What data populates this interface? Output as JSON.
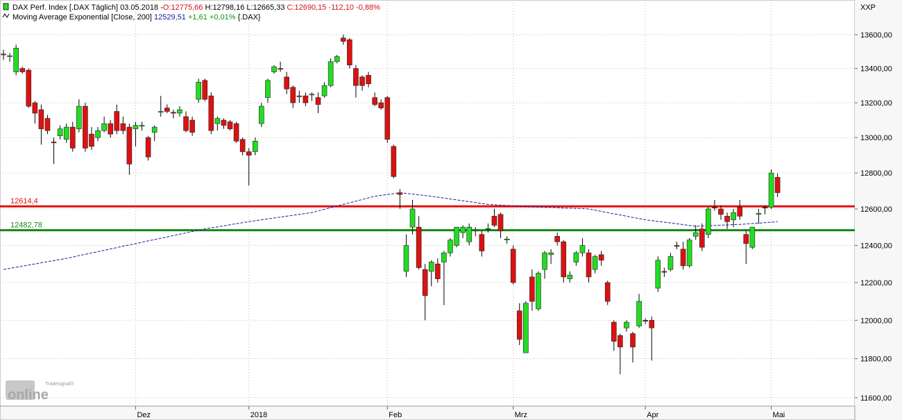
{
  "chart_data": {
    "type": "candlestick",
    "header": {
      "name": "DAX Perf. Index [.DAX  Täglich]",
      "date": "03.05.2018 -",
      "open": "O:12775,66",
      "high": "H:12798,16",
      "low": "L:12665,33",
      "close": "C:12690,15",
      "change": "-112,10",
      "change_pct": "-0,88%"
    },
    "ema": {
      "name": "Moving Average Exponential [Close, 200]",
      "last": "12529,51",
      "change": "+1,61 +0,01%",
      "symbol": "{.DAX}",
      "color": "#1a1aa0",
      "values": [
        12270,
        12276,
        12282,
        12288,
        12294,
        12300,
        12306,
        12312,
        12318,
        12324,
        12330,
        12337,
        12345,
        12352,
        12359,
        12366,
        12374,
        12381,
        12388,
        12396,
        12403,
        12410,
        12417,
        12425,
        12432,
        12439,
        12446,
        12454,
        12461,
        12468,
        12476,
        12483,
        12490,
        12496,
        12501,
        12507,
        12513,
        12519,
        12524,
        12530,
        12535,
        12540,
        12545,
        12550,
        12555,
        12560,
        12565,
        12570,
        12575,
        12580,
        12589,
        12598,
        12607,
        12616,
        12625,
        12634,
        12643,
        12652,
        12661,
        12670,
        12675,
        12680,
        12685,
        12690,
        12686,
        12682,
        12678,
        12674,
        12670,
        12665,
        12660,
        12655,
        12650,
        12645,
        12640,
        12635,
        12630,
        12625,
        12623,
        12621,
        12619,
        12617,
        12615,
        12612,
        12611,
        12610,
        12609,
        12608,
        12607,
        12605,
        12604,
        12603,
        12602,
        12600,
        12593,
        12587,
        12580,
        12573,
        12567,
        12560,
        12553,
        12547,
        12540,
        12536,
        12531,
        12527,
        12523,
        12518,
        12514,
        12509,
        12505,
        12506,
        12508,
        12509,
        12511,
        12512,
        12514,
        12515,
        12517,
        12520,
        12522,
        12524,
        12527,
        12529.51
      ]
    },
    "symbol_label": "XXP",
    "branding": {
      "small": "Tradesignal®",
      "large": "online"
    },
    "up_color": "#22dd22",
    "down_color": "#dd1111",
    "log_scale": true,
    "grid": true,
    "ylim": [
      11557,
      13808
    ],
    "yticks": [
      {
        "value": 11600,
        "label": "11600,00"
      },
      {
        "value": 11800,
        "label": "11800,00"
      },
      {
        "value": 12000,
        "label": "12000,00"
      },
      {
        "value": 12200,
        "label": "12200,00"
      },
      {
        "value": 12400,
        "label": "12400,00"
      },
      {
        "value": 12600,
        "label": "12600,00"
      },
      {
        "value": 12800,
        "label": "12800,00"
      },
      {
        "value": 13000,
        "label": "13000,00"
      },
      {
        "value": 13200,
        "label": "13200,00"
      },
      {
        "value": 13400,
        "label": "13400,00"
      },
      {
        "value": 13600,
        "label": "13600,00"
      }
    ],
    "hlines": [
      {
        "value": 12614.4,
        "label": "12614,4",
        "color": "#e01010"
      },
      {
        "value": 12482.78,
        "label": "12482,78",
        "color": "#108a10"
      }
    ],
    "categories": [
      null,
      null,
      null,
      null,
      null,
      null,
      null,
      null,
      null,
      null,
      null,
      null,
      null,
      null,
      null,
      null,
      null,
      null,
      null,
      null,
      null,
      "Dez",
      null,
      null,
      null,
      null,
      null,
      null,
      null,
      null,
      null,
      null,
      null,
      null,
      null,
      null,
      null,
      null,
      null,
      "2018",
      null,
      null,
      null,
      null,
      null,
      null,
      null,
      null,
      null,
      null,
      null,
      null,
      null,
      null,
      null,
      null,
      null,
      null,
      null,
      null,
      null,
      "Feb",
      null,
      null,
      null,
      null,
      null,
      null,
      null,
      null,
      null,
      null,
      null,
      null,
      null,
      null,
      null,
      null,
      null,
      null,
      null,
      "Mrz",
      null,
      null,
      null,
      null,
      null,
      null,
      null,
      null,
      null,
      null,
      null,
      null,
      null,
      null,
      null,
      null,
      null,
      null,
      null,
      null,
      "Apr",
      null,
      null,
      null,
      null,
      null,
      null,
      null,
      null,
      null,
      null,
      null,
      null,
      null,
      null,
      null,
      null,
      null,
      null,
      null,
      "Mai",
      null
    ],
    "open": [
      13485,
      13470,
      13380,
      13400,
      13390,
      13200,
      13160,
      13110,
      12975,
      13010,
      12990,
      13060,
      13050,
      13180,
      13020,
      13000,
      13040,
      13080,
      13150,
      13080,
      13060,
      13050,
      13065,
      13000,
      13030,
      13145,
      13170,
      13145,
      13140,
      13120,
      13100,
      13220,
      13330,
      13240,
      13080,
      13100,
      13090,
      13080,
      12990,
      12920,
      12920,
      13080,
      13230,
      13380,
      13400,
      13350,
      13290,
      13240,
      13240,
      13245,
      13230,
      13240,
      13300,
      13440,
      13580,
      13570,
      13400,
      13350,
      13360,
      13230,
      13200,
      13230,
      12950,
      12690,
      12260,
      12500,
      12500,
      12270,
      12260,
      12300,
      12310,
      12360,
      12400,
      12470,
      12420,
      12480,
      12460,
      12490,
      12560,
      12570,
      12430,
      12380,
      12050,
      11830,
      12230,
      12060,
      12270,
      12350,
      12450,
      12420,
      12220,
      12310,
      12360,
      12360,
      12270,
      12350,
      12200,
      11990,
      11920,
      11960,
      11930,
      11970,
      12000,
      12000,
      12170,
      12260,
      12270,
      12400,
      12380,
      12290,
      12450,
      12490,
      12460,
      12610,
      12600,
      12560,
      12540,
      12610,
      12460,
      12390,
      12570,
      12610,
      12610,
      12775.66
    ],
    "high": [
      13510,
      13490,
      13540,
      13410,
      13400,
      13210,
      13190,
      13130,
      13000,
      13070,
      13080,
      13090,
      13220,
      13200,
      13060,
      13060,
      13120,
      13100,
      13190,
      13120,
      13080,
      13090,
      13090,
      13010,
      13070,
      13240,
      13190,
      13160,
      13180,
      13150,
      13120,
      13340,
      13340,
      13260,
      13120,
      13110,
      13100,
      13090,
      13000,
      12940,
      13000,
      13200,
      13340,
      13420,
      13440,
      13380,
      13300,
      13270,
      13260,
      13260,
      13260,
      13320,
      13460,
      13480,
      13600,
      13580,
      13420,
      13360,
      13380,
      13260,
      13220,
      13240,
      12960,
      12710,
      12460,
      12650,
      12560,
      12300,
      12320,
      12330,
      12370,
      12440,
      12500,
      12510,
      12520,
      12500,
      12480,
      12520,
      12600,
      12580,
      12450,
      12400,
      12090,
      12100,
      12270,
      12260,
      12370,
      12380,
      12470,
      12430,
      12260,
      12370,
      12440,
      12380,
      12350,
      12370,
      12210,
      12000,
      11930,
      12000,
      11940,
      12140,
      12010,
      12020,
      12340,
      12280,
      12360,
      12420,
      12420,
      12440,
      12510,
      12520,
      12610,
      12650,
      12620,
      12580,
      12600,
      12650,
      12480,
      12500,
      12600,
      12620,
      12820,
      12798.16
    ],
    "low": [
      13450,
      13440,
      13360,
      13370,
      13170,
      13080,
      12960,
      13020,
      12850,
      12990,
      12970,
      12920,
      13030,
      12920,
      12930,
      12980,
      13030,
      13000,
      13020,
      13020,
      12790,
      12950,
      13040,
      12870,
      12980,
      13120,
      13140,
      13110,
      13120,
      13030,
      13010,
      13200,
      13210,
      13020,
      13040,
      13050,
      13040,
      12970,
      12900,
      12730,
      12900,
      13060,
      13200,
      13370,
      13380,
      13250,
      13170,
      13200,
      13180,
      13210,
      13140,
      13230,
      13290,
      13430,
      13540,
      13400,
      13230,
      13270,
      13290,
      13180,
      13160,
      12970,
      12770,
      12600,
      12230,
      12460,
      12270,
      12000,
      12180,
      12200,
      12080,
      12340,
      12390,
      12440,
      12400,
      12450,
      12340,
      12470,
      12500,
      12440,
      12410,
      12190,
      11870,
      11830,
      12050,
      12050,
      12220,
      12300,
      12400,
      12200,
      12200,
      12290,
      12340,
      12200,
      12250,
      12290,
      12080,
      11840,
      11720,
      11940,
      11780,
      11960,
      11980,
      11790,
      12150,
      12230,
      12260,
      12380,
      12270,
      12280,
      12430,
      12370,
      12440,
      12590,
      12540,
      12490,
      12500,
      12540,
      12300,
      12380,
      12520,
      12570,
      12600,
      12665.33
    ],
    "close": [
      13480,
      13475,
      13520,
      13380,
      13180,
      13140,
      13050,
      13040,
      12970,
      13050,
      13060,
      12940,
      13180,
      12940,
      12950,
      13040,
      13080,
      13020,
      13040,
      13040,
      12850,
      13070,
      13070,
      12890,
      13060,
      13150,
      13150,
      13140,
      13160,
      13040,
      13030,
      13320,
      13220,
      13040,
      13110,
      13070,
      13050,
      12980,
      12920,
      12900,
      12980,
      13180,
      13330,
      13410,
      13395,
      13280,
      13200,
      13235,
      13200,
      13250,
      13190,
      13300,
      13440,
      13470,
      13560,
      13420,
      13300,
      13300,
      13310,
      13190,
      13170,
      12990,
      12780,
      12680,
      12400,
      12600,
      12280,
      12130,
      12310,
      12220,
      12360,
      12430,
      12500,
      12500,
      12500,
      12485,
      12370,
      12492,
      12510,
      12480,
      12435,
      12200,
      11900,
      12090,
      12100,
      12250,
      12360,
      12360,
      12420,
      12230,
      12240,
      12360,
      12400,
      12230,
      12340,
      12320,
      12100,
      11890,
      11860,
      11990,
      11860,
      12100,
      11995,
      11960,
      12320,
      12255,
      12340,
      12395,
      12290,
      12430,
      12470,
      12390,
      12600,
      12605,
      12570,
      12530,
      12580,
      12560,
      12410,
      12500,
      12575,
      12605,
      12800,
      12690.15
    ]
  }
}
